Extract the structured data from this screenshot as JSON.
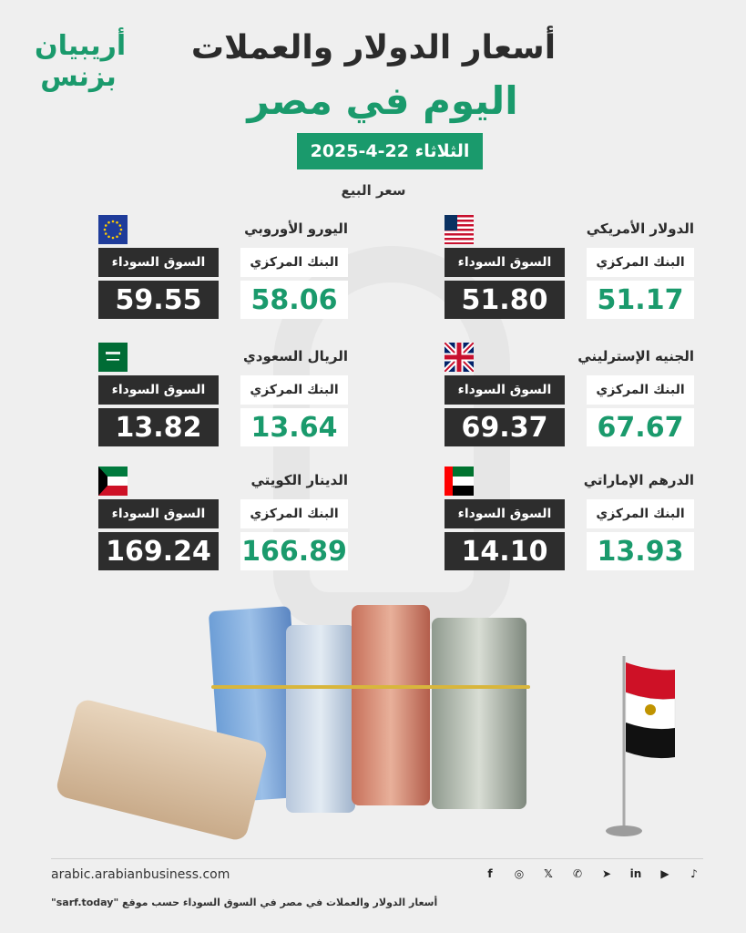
{
  "brand": {
    "logo_line1": "أريبيان",
    "logo_line2": "بزنس"
  },
  "header": {
    "title_line1": "أسعار الدولار والعملات",
    "title_line2": "اليوم في مصر",
    "date": "الثلاثاء 22-4-2025",
    "sell_label": "سعر البيع"
  },
  "labels": {
    "central": "البنك المركزي",
    "black": "السوق السوداء"
  },
  "currencies": [
    {
      "name": "الدولار الأمريكي",
      "central": "51.17",
      "black": "51.80",
      "flag": "us-flag-icon"
    },
    {
      "name": "اليورو الأوروبي",
      "central": "58.06",
      "black": "59.55",
      "flag": "eu-flag-icon"
    },
    {
      "name": "الجنيه الإسترليني",
      "central": "67.67",
      "black": "69.37",
      "flag": "uk-flag-icon"
    },
    {
      "name": "الريال السعودي",
      "central": "13.64",
      "black": "13.82",
      "flag": "sa-flag-icon"
    },
    {
      "name": "الدرهم الإماراتي",
      "central": "13.93",
      "black": "14.10",
      "flag": "ae-flag-icon"
    },
    {
      "name": "الدينار الكويتي",
      "central": "166.89",
      "black": "169.24",
      "flag": "kw-flag-icon"
    }
  ],
  "footer": {
    "site": "arabic.arabianbusiness.com",
    "source": "أسعار الدولار والعملات في مصر في السوق السوداء حسب موقع \"sarf.today\"",
    "social_icons": [
      "tiktok-icon",
      "youtube-icon",
      "linkedin-icon",
      "telegram-icon",
      "whatsapp-icon",
      "x-icon",
      "instagram-icon",
      "facebook-icon"
    ]
  },
  "colors": {
    "accent": "#1a9a6c",
    "dark": "#2d2d2d",
    "background": "#efefef"
  }
}
